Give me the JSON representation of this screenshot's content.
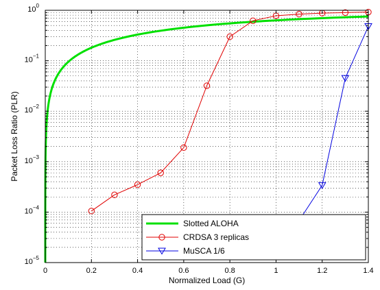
{
  "chart_data": {
    "type": "line",
    "title": "",
    "xlabel": "Normalized Load (G)",
    "ylabel": "Packet Loss Ratio (PLR)",
    "xlim": [
      0,
      1.4
    ],
    "ylim": [
      1e-05,
      1
    ],
    "yscale": "log",
    "grid": true,
    "legend_position": "bottom-right",
    "x_ticks": [
      {
        "value": 0,
        "label": "0"
      },
      {
        "value": 0.2,
        "label": "0.2"
      },
      {
        "value": 0.4,
        "label": "0.4"
      },
      {
        "value": 0.6,
        "label": "0.6"
      },
      {
        "value": 0.8,
        "label": "0.8"
      },
      {
        "value": 1.0,
        "label": "1"
      },
      {
        "value": 1.2,
        "label": "1.2"
      },
      {
        "value": 1.4,
        "label": "1.4"
      }
    ],
    "y_ticks": [
      {
        "exp": 0,
        "base": "10",
        "sup": "0"
      },
      {
        "exp": -1,
        "base": "10",
        "sup": "−1"
      },
      {
        "exp": -2,
        "base": "10",
        "sup": "−2"
      },
      {
        "exp": -3,
        "base": "10",
        "sup": "−3"
      },
      {
        "exp": -4,
        "base": "10",
        "sup": "−4"
      },
      {
        "exp": -5,
        "base": "10",
        "sup": "−5"
      }
    ],
    "series": [
      {
        "name": "Slotted ALOHA",
        "color": "#00e000",
        "marker": "none",
        "function": "1 - exp(-G)",
        "x": [
          0.0001,
          0.001,
          0.005,
          0.01,
          0.02,
          0.05,
          0.1,
          0.15,
          0.2,
          0.3,
          0.4,
          0.5,
          0.6,
          0.7,
          0.8,
          0.9,
          1.0,
          1.1,
          1.2,
          1.3,
          1.4
        ],
        "values": [
          0.0001,
          0.001,
          0.005,
          0.00995,
          0.0198,
          0.0488,
          0.0952,
          0.139,
          0.181,
          0.259,
          0.33,
          0.393,
          0.451,
          0.503,
          0.551,
          0.593,
          0.632,
          0.667,
          0.699,
          0.727,
          0.753
        ]
      },
      {
        "name": "CRDSA 3 replicas",
        "color": "#e00000",
        "marker": "circle",
        "x": [
          0.2,
          0.3,
          0.4,
          0.5,
          0.6,
          0.7,
          0.8,
          0.9,
          1.0,
          1.1,
          1.2,
          1.3,
          1.4
        ],
        "values": [
          0.000105,
          0.00022,
          0.00035,
          0.0006,
          0.0019,
          0.032,
          0.3,
          0.62,
          0.78,
          0.84,
          0.88,
          0.9,
          0.92
        ]
      },
      {
        "name": "MuSCA 1/6",
        "color": "#0000e0",
        "marker": "triangle-down",
        "x": [
          1.1,
          1.2,
          1.3,
          1.4
        ],
        "values": [
          6.8e-05,
          0.00034,
          0.045,
          0.48
        ]
      }
    ]
  }
}
